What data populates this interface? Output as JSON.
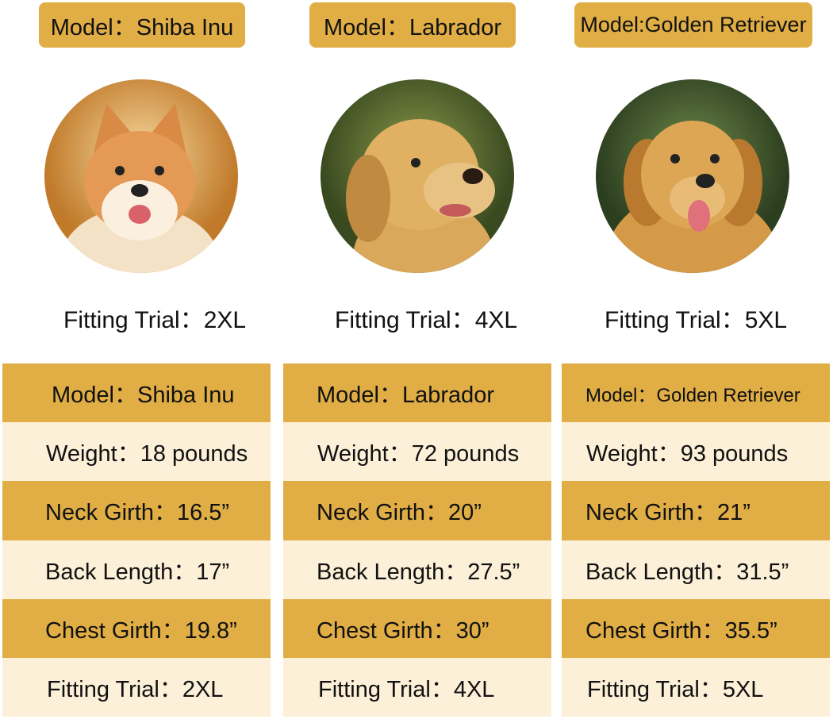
{
  "colors": {
    "gold": "#e0ae45",
    "cream": "#fdf0d8"
  },
  "dogs": [
    {
      "model_pill": "Model：Shiba Inu",
      "photo": "shiba-inu-photo",
      "fitting_trial": "Fitting Trial：2XL",
      "table": [
        "Model：Shiba Inu",
        "Weight：18 pounds",
        "Neck Girth：16.5”",
        "Back Length：17”",
        "Chest Girth：19.8”",
        "Fitting Trial：2XL"
      ]
    },
    {
      "model_pill": "Model：Labrador",
      "photo": "labrador-photo",
      "fitting_trial": "Fitting Trial：4XL",
      "table": [
        "Model：Labrador",
        "Weight：72 pounds",
        "Neck Girth：20”",
        "Back Length：27.5”",
        "Chest Girth：30”",
        "Fitting Trial：4XL"
      ]
    },
    {
      "model_pill": "Model:Golden Retriever",
      "photo": "golden-retriever-photo",
      "fitting_trial": "Fitting Trial：5XL",
      "table": [
        "Model：Golden Retriever",
        "Weight：93 pounds",
        "Neck Girth：21”",
        "Back Length：31.5”",
        "Chest Girth：35.5”",
        "Fitting Trial：5XL"
      ]
    }
  ]
}
